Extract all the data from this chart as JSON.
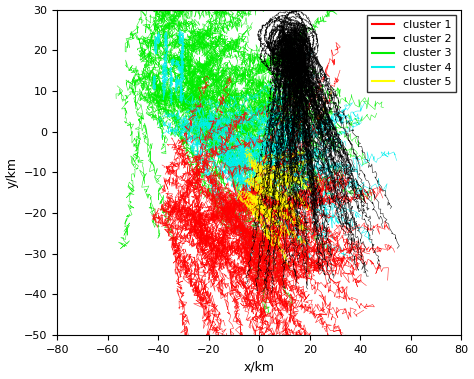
{
  "xlabel": "x/km",
  "ylabel": "y/km",
  "xlim": [
    -80,
    80
  ],
  "ylim": [
    -50,
    30
  ],
  "xticks": [
    -80,
    -60,
    -40,
    -20,
    0,
    20,
    40,
    60,
    80
  ],
  "yticks": [
    -50,
    -40,
    -30,
    -20,
    -10,
    0,
    10,
    20,
    30
  ],
  "clusters": {
    "cluster1": {
      "color": "#ff0000",
      "label": "cluster 1"
    },
    "cluster2": {
      "color": "#000000",
      "label": "cluster 2"
    },
    "cluster3": {
      "color": "#00ee00",
      "label": "cluster 3"
    },
    "cluster4": {
      "color": "#00eeee",
      "label": "cluster 4"
    },
    "cluster5": {
      "color": "#ffff00",
      "label": "cluster 5"
    }
  },
  "background_color": "#ffffff",
  "linewidth": 0.4,
  "alpha": 0.85,
  "seed": 123
}
